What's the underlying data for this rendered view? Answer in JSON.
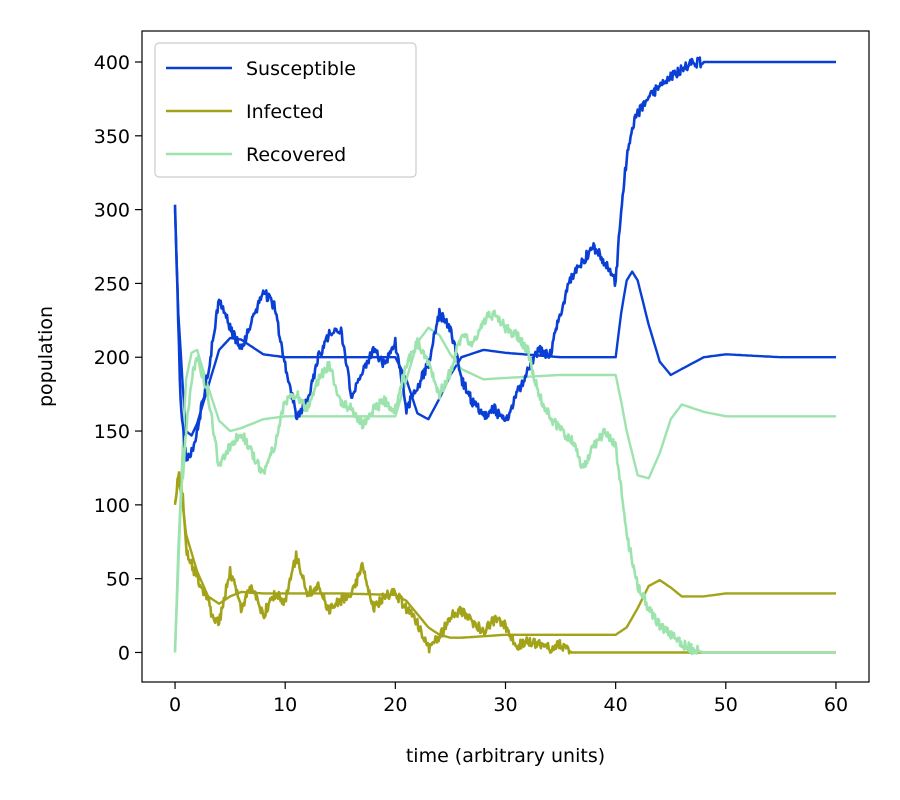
{
  "chart_data": {
    "type": "line",
    "xlabel": "time (arbitrary units)",
    "ylabel": "population",
    "xlim": [
      -3,
      63
    ],
    "ylim": [
      -20,
      421
    ],
    "xticks": [
      0,
      10,
      20,
      30,
      40,
      50,
      60
    ],
    "yticks": [
      0,
      50,
      100,
      150,
      200,
      250,
      300,
      350,
      400
    ],
    "grid": false,
    "legend_position": "top-left",
    "colors": {
      "susceptible": "#0a3fd6",
      "infected": "#a3a31a",
      "recovered": "#9de3ae"
    },
    "legend": [
      {
        "label": "Susceptible",
        "color": "#0a3fd6"
      },
      {
        "label": "Infected",
        "color": "#a3a31a"
      },
      {
        "label": "Recovered",
        "color": "#9de3ae"
      }
    ],
    "series": [
      {
        "name": "Susceptible",
        "style": "deterministic",
        "color": "#0a3fd6",
        "x": [
          0,
          0.3,
          0.7,
          1,
          1.5,
          2,
          3,
          4,
          5,
          6,
          7,
          8,
          10,
          15,
          20,
          21,
          22,
          23,
          24,
          25,
          26,
          28,
          30,
          35,
          40,
          40.5,
          41,
          41.5,
          42,
          43,
          44,
          45,
          46,
          48,
          50,
          55,
          60
        ],
        "y": [
          300,
          230,
          180,
          150,
          147,
          155,
          180,
          205,
          213,
          212,
          207,
          202,
          200,
          200,
          200,
          185,
          162,
          158,
          172,
          188,
          200,
          205,
          203,
          200,
          200,
          230,
          252,
          258,
          252,
          222,
          197,
          188,
          192,
          200,
          202,
          200,
          200
        ]
      },
      {
        "name": "Infected",
        "style": "deterministic",
        "color": "#a3a31a",
        "x": [
          0,
          0.3,
          0.7,
          1,
          2,
          3,
          4,
          5,
          6,
          8,
          10,
          15,
          20,
          21,
          22,
          23,
          24,
          25,
          26,
          28,
          30,
          35,
          40,
          41,
          42,
          43,
          44,
          45,
          46,
          48,
          50,
          55,
          60
        ],
        "y": [
          100,
          118,
          100,
          80,
          55,
          38,
          33,
          38,
          41,
          40,
          40,
          40,
          39,
          35,
          26,
          17,
          12,
          10,
          10,
          11,
          12,
          12,
          12,
          17,
          30,
          45,
          49,
          44,
          38,
          38,
          40,
          40,
          40
        ]
      },
      {
        "name": "Recovered",
        "style": "deterministic",
        "color": "#9de3ae",
        "x": [
          0,
          0.3,
          0.7,
          1,
          1.5,
          2,
          3,
          4,
          5,
          6,
          8,
          10,
          15,
          20,
          21,
          22,
          23,
          24,
          25,
          26,
          28,
          30,
          35,
          40,
          40.5,
          41,
          42,
          43,
          44,
          45,
          46,
          48,
          50,
          55,
          60
        ],
        "y": [
          0,
          70,
          140,
          185,
          203,
          205,
          180,
          157,
          150,
          152,
          158,
          160,
          160,
          160,
          185,
          210,
          220,
          215,
          202,
          192,
          185,
          186,
          188,
          188,
          170,
          150,
          120,
          118,
          135,
          158,
          168,
          163,
          160,
          160,
          160
        ]
      },
      {
        "name": "Susceptible",
        "style": "stochastic",
        "color": "#0a3fd6",
        "x": [
          0,
          0.5,
          1,
          1.5,
          2,
          3,
          4,
          5,
          6,
          7,
          8,
          9,
          10,
          11,
          12,
          13,
          14,
          15,
          16,
          17,
          18,
          19,
          20,
          21,
          22,
          23,
          24,
          25,
          26,
          27,
          28,
          29,
          30,
          31,
          32,
          33,
          34,
          35,
          36,
          37,
          38,
          39,
          40,
          40.5,
          41,
          41.5,
          42,
          43,
          44,
          45,
          46,
          47,
          48,
          50,
          55,
          60
        ],
        "y": [
          300,
          170,
          130,
          135,
          150,
          190,
          240,
          220,
          205,
          225,
          245,
          235,
          195,
          160,
          170,
          200,
          215,
          220,
          175,
          190,
          205,
          195,
          210,
          165,
          180,
          195,
          230,
          220,
          185,
          170,
          160,
          165,
          155,
          175,
          190,
          205,
          200,
          230,
          255,
          265,
          275,
          265,
          250,
          300,
          335,
          355,
          365,
          375,
          385,
          390,
          395,
          399,
          400,
          400,
          400,
          400
        ]
      },
      {
        "name": "Infected",
        "style": "stochastic",
        "color": "#a3a31a",
        "x": [
          0,
          0.3,
          0.7,
          1,
          1.5,
          2,
          3,
          3.5,
          4,
          5,
          6,
          7,
          8,
          9,
          10,
          11,
          12,
          13,
          14,
          15,
          16,
          17,
          18,
          19,
          20,
          21,
          22,
          23,
          24,
          25,
          26,
          27,
          28,
          29,
          30,
          31,
          32,
          33,
          34,
          35,
          36,
          37,
          40,
          45,
          50,
          55,
          60
        ],
        "y": [
          100,
          122,
          105,
          70,
          60,
          50,
          35,
          22,
          20,
          55,
          30,
          45,
          25,
          40,
          35,
          65,
          40,
          45,
          28,
          35,
          38,
          60,
          30,
          38,
          40,
          30,
          20,
          3,
          10,
          25,
          28,
          20,
          15,
          22,
          18,
          5,
          8,
          5,
          3,
          5,
          0,
          0,
          0,
          0,
          0,
          0,
          0
        ]
      },
      {
        "name": "Recovered",
        "style": "stochastic",
        "color": "#9de3ae",
        "x": [
          0,
          0.5,
          1,
          1.5,
          2,
          3,
          4,
          5,
          6,
          7,
          8,
          9,
          10,
          11,
          12,
          13,
          14,
          15,
          16,
          17,
          18,
          19,
          20,
          21,
          22,
          23,
          24,
          25,
          26,
          27,
          28,
          29,
          30,
          31,
          32,
          33,
          34,
          35,
          36,
          37,
          38,
          39,
          40,
          41,
          42,
          43,
          44,
          45,
          46,
          47,
          48,
          50,
          55,
          60
        ],
        "y": [
          0,
          100,
          150,
          185,
          200,
          175,
          125,
          140,
          150,
          135,
          120,
          140,
          170,
          175,
          165,
          185,
          195,
          170,
          165,
          155,
          165,
          170,
          165,
          195,
          210,
          195,
          175,
          190,
          215,
          210,
          225,
          230,
          220,
          215,
          205,
          175,
          160,
          150,
          145,
          125,
          140,
          150,
          140,
          80,
          45,
          30,
          18,
          12,
          6,
          2,
          0,
          0,
          0,
          0
        ]
      }
    ]
  }
}
